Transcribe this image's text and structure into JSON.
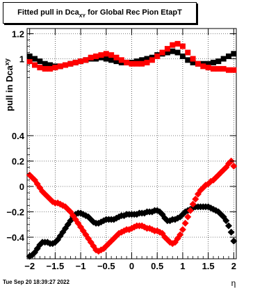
{
  "chart_data": {
    "type": "scatter",
    "title": {
      "main": "Fitted pull in Dca",
      "sub": "XY",
      "rest": " for Global Rec Pion EtapT"
    },
    "ylabel": "pull in Dca",
    "ylabel_sub": "xy",
    "xlabel": "η",
    "xlim": [
      -2.05,
      2.05
    ],
    "ylim": [
      -0.58,
      1.25
    ],
    "y_break": {
      "at": 0.3,
      "lower_to": 0.3,
      "upper_from": 0.85
    },
    "x_ticks": [
      -2,
      -1.5,
      -1,
      -0.5,
      0,
      0.5,
      1,
      1.5,
      2
    ],
    "x_tick_labels": [
      "−2",
      "−1.5",
      "−1",
      "−0.5",
      "0",
      "0.5",
      "1",
      "1.5",
      "2"
    ],
    "y_ticks": [
      -0.4,
      -0.2,
      0,
      0.2,
      0.4,
      1,
      1.2
    ],
    "y_tick_labels": [
      "−0.4",
      "−0.2",
      "0",
      "0.2",
      "0.4",
      "1",
      "1.2"
    ],
    "grid": true,
    "series": [
      {
        "marker": "square",
        "color": "#000000",
        "x": [
          -2.0,
          -1.9,
          -1.8,
          -1.7,
          -1.6,
          -1.5,
          -1.4,
          -1.3,
          -1.2,
          -1.1,
          -1.0,
          -0.9,
          -0.8,
          -0.7,
          -0.6,
          -0.5,
          -0.4,
          -0.3,
          -0.2,
          -0.1,
          0.0,
          0.1,
          0.2,
          0.3,
          0.4,
          0.5,
          0.6,
          0.7,
          0.8,
          0.9,
          1.0,
          1.1,
          1.2,
          1.3,
          1.4,
          1.5,
          1.6,
          1.7,
          1.8,
          1.9,
          2.0
        ],
        "y": [
          1.02,
          1.0,
          0.98,
          0.96,
          0.95,
          0.94,
          0.94,
          0.95,
          0.96,
          0.97,
          0.98,
          0.99,
          1.0,
          1.0,
          1.01,
          1.0,
          0.99,
          0.98,
          0.97,
          0.97,
          0.97,
          0.98,
          0.99,
          1.0,
          1.01,
          1.03,
          1.04,
          1.05,
          1.06,
          1.05,
          1.02,
          0.99,
          0.97,
          0.96,
          0.96,
          0.96,
          0.97,
          0.98,
          1.0,
          1.02,
          1.04
        ]
      },
      {
        "marker": "square",
        "color": "#ff0000",
        "x": [
          -2.0,
          -1.9,
          -1.8,
          -1.7,
          -1.6,
          -1.5,
          -1.4,
          -1.3,
          -1.2,
          -1.1,
          -1.0,
          -0.9,
          -0.8,
          -0.7,
          -0.6,
          -0.5,
          -0.4,
          -0.3,
          -0.2,
          -0.1,
          0.0,
          0.1,
          0.2,
          0.3,
          0.4,
          0.5,
          0.6,
          0.7,
          0.8,
          0.9,
          1.0,
          1.1,
          1.2,
          1.3,
          1.4,
          1.5,
          1.6,
          1.7,
          1.8,
          1.9,
          2.0
        ],
        "y": [
          0.98,
          0.95,
          0.93,
          0.92,
          0.92,
          0.93,
          0.94,
          0.95,
          0.96,
          0.97,
          0.98,
          0.99,
          1.01,
          1.02,
          1.03,
          1.04,
          1.03,
          1.01,
          0.99,
          0.97,
          0.96,
          0.96,
          0.96,
          0.97,
          0.99,
          1.02,
          1.05,
          1.08,
          1.11,
          1.12,
          1.1,
          1.05,
          1.0,
          0.96,
          0.94,
          0.93,
          0.92,
          0.92,
          0.92,
          0.91,
          0.91
        ]
      },
      {
        "marker": "diamond",
        "color": "#000000",
        "x": [
          -2.0,
          -1.95,
          -1.9,
          -1.85,
          -1.8,
          -1.75,
          -1.7,
          -1.65,
          -1.6,
          -1.55,
          -1.5,
          -1.45,
          -1.4,
          -1.35,
          -1.3,
          -1.25,
          -1.2,
          -1.15,
          -1.1,
          -1.05,
          -1.0,
          -0.95,
          -0.9,
          -0.85,
          -0.8,
          -0.75,
          -0.7,
          -0.65,
          -0.6,
          -0.55,
          -0.5,
          -0.45,
          -0.4,
          -0.35,
          -0.3,
          -0.25,
          -0.2,
          -0.15,
          -0.1,
          -0.05,
          0.0,
          0.05,
          0.1,
          0.15,
          0.2,
          0.25,
          0.3,
          0.35,
          0.4,
          0.45,
          0.5,
          0.55,
          0.6,
          0.65,
          0.7,
          0.75,
          0.8,
          0.85,
          0.9,
          0.95,
          1.0,
          1.05,
          1.1,
          1.15,
          1.2,
          1.25,
          1.3,
          1.35,
          1.4,
          1.45,
          1.5,
          1.55,
          1.6,
          1.65,
          1.7,
          1.75,
          1.8,
          1.85,
          1.9,
          1.95,
          2.0
        ],
        "y": [
          -0.55,
          -0.54,
          -0.52,
          -0.49,
          -0.46,
          -0.44,
          -0.44,
          -0.44,
          -0.45,
          -0.45,
          -0.44,
          -0.42,
          -0.39,
          -0.36,
          -0.33,
          -0.3,
          -0.27,
          -0.24,
          -0.22,
          -0.21,
          -0.21,
          -0.22,
          -0.23,
          -0.24,
          -0.26,
          -0.28,
          -0.29,
          -0.29,
          -0.28,
          -0.27,
          -0.26,
          -0.26,
          -0.26,
          -0.26,
          -0.25,
          -0.24,
          -0.23,
          -0.23,
          -0.22,
          -0.22,
          -0.22,
          -0.22,
          -0.22,
          -0.21,
          -0.21,
          -0.21,
          -0.2,
          -0.2,
          -0.2,
          -0.19,
          -0.19,
          -0.2,
          -0.22,
          -0.25,
          -0.27,
          -0.27,
          -0.26,
          -0.26,
          -0.25,
          -0.24,
          -0.22,
          -0.2,
          -0.19,
          -0.18,
          -0.17,
          -0.16,
          -0.16,
          -0.16,
          -0.16,
          -0.16,
          -0.16,
          -0.17,
          -0.18,
          -0.19,
          -0.2,
          -0.22,
          -0.24,
          -0.27,
          -0.31,
          -0.36,
          -0.43
        ]
      },
      {
        "marker": "diamond",
        "color": "#ff0000",
        "x": [
          -2.0,
          -1.95,
          -1.9,
          -1.85,
          -1.8,
          -1.75,
          -1.7,
          -1.65,
          -1.6,
          -1.55,
          -1.5,
          -1.45,
          -1.4,
          -1.35,
          -1.3,
          -1.25,
          -1.2,
          -1.15,
          -1.1,
          -1.05,
          -1.0,
          -0.95,
          -0.9,
          -0.85,
          -0.8,
          -0.75,
          -0.7,
          -0.65,
          -0.6,
          -0.55,
          -0.5,
          -0.45,
          -0.4,
          -0.35,
          -0.3,
          -0.25,
          -0.2,
          -0.15,
          -0.1,
          -0.05,
          0.0,
          0.05,
          0.1,
          0.15,
          0.2,
          0.25,
          0.3,
          0.35,
          0.4,
          0.45,
          0.5,
          0.55,
          0.6,
          0.65,
          0.7,
          0.75,
          0.8,
          0.85,
          0.9,
          0.95,
          1.0,
          1.05,
          1.1,
          1.15,
          1.2,
          1.25,
          1.3,
          1.35,
          1.4,
          1.45,
          1.5,
          1.55,
          1.6,
          1.65,
          1.7,
          1.75,
          1.8,
          1.85,
          1.9,
          1.95,
          2.0
        ],
        "y": [
          0.09,
          0.07,
          0.05,
          0.02,
          -0.01,
          -0.04,
          -0.06,
          -0.08,
          -0.1,
          -0.12,
          -0.13,
          -0.13,
          -0.14,
          -0.15,
          -0.16,
          -0.18,
          -0.2,
          -0.23,
          -0.26,
          -0.29,
          -0.32,
          -0.35,
          -0.38,
          -0.41,
          -0.44,
          -0.47,
          -0.5,
          -0.51,
          -0.5,
          -0.49,
          -0.47,
          -0.45,
          -0.43,
          -0.41,
          -0.39,
          -0.37,
          -0.36,
          -0.35,
          -0.34,
          -0.34,
          -0.33,
          -0.32,
          -0.31,
          -0.31,
          -0.31,
          -0.32,
          -0.33,
          -0.33,
          -0.34,
          -0.35,
          -0.35,
          -0.36,
          -0.37,
          -0.4,
          -0.42,
          -0.44,
          -0.45,
          -0.44,
          -0.41,
          -0.38,
          -0.34,
          -0.29,
          -0.24,
          -0.19,
          -0.14,
          -0.1,
          -0.06,
          -0.03,
          -0.01,
          0.01,
          0.02,
          0.04,
          0.05,
          0.07,
          0.09,
          0.11,
          0.13,
          0.15,
          0.18,
          0.2,
          0.16
        ]
      }
    ]
  },
  "footer": {
    "date": "Tue Sep 20 18:39:27 2022"
  }
}
